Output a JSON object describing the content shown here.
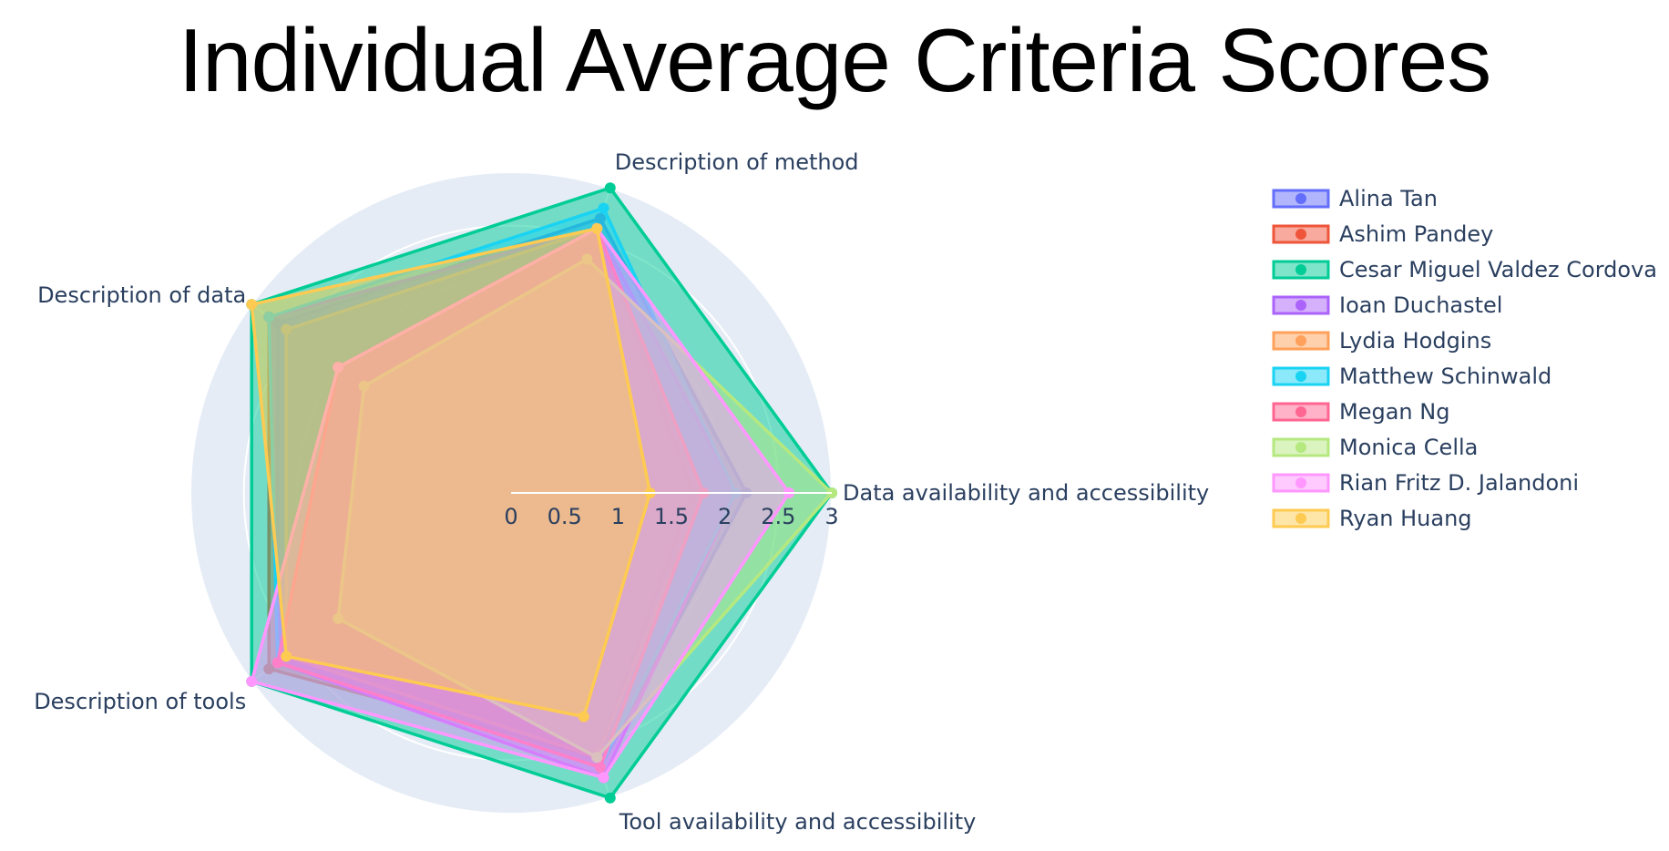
{
  "chart_data": {
    "type": "radar",
    "title": "Individual Average Criteria Scores",
    "axes": [
      "Data availability and accessibility",
      "Description of method",
      "Description of data",
      "Description of tools",
      "Tool availability and accessibility"
    ],
    "radial_range": [
      0,
      3
    ],
    "radial_ticks": [
      "0",
      "0.5",
      "1",
      "1.5",
      "2",
      "2.5",
      "3"
    ],
    "legend_position": "right",
    "series": [
      {
        "name": "Alina Tan",
        "color": "#636efa",
        "values": [
          2.2,
          2.7,
          2.7,
          2.7,
          2.7
        ]
      },
      {
        "name": "Ashim Pandey",
        "color": "#ef553b",
        "values": [
          1.7,
          2.6,
          2.8,
          2.8,
          2.6
        ]
      },
      {
        "name": "Cesar Miguel Valdez Cordova",
        "color": "#00cc96",
        "values": [
          3.0,
          3.0,
          3.0,
          3.0,
          3.0
        ]
      },
      {
        "name": "Ioan Duchastel",
        "color": "#ab63fa",
        "values": [
          2.1,
          2.6,
          2.8,
          2.7,
          2.8
        ]
      },
      {
        "name": "Lydia Hodgins",
        "color": "#ffa15a",
        "values": [
          1.8,
          2.6,
          2.6,
          2.6,
          2.6
        ]
      },
      {
        "name": "Matthew Schinwald",
        "color": "#19d3f3",
        "values": [
          2.1,
          2.8,
          2.8,
          2.7,
          2.7
        ]
      },
      {
        "name": "Megan Ng",
        "color": "#ff6692",
        "values": [
          1.8,
          2.6,
          2.0,
          2.7,
          2.7
        ]
      },
      {
        "name": "Monica Cella",
        "color": "#b6e880",
        "values": [
          3.0,
          2.3,
          1.7,
          2.0,
          2.6
        ]
      },
      {
        "name": "Rian Fritz D. Jalandoni",
        "color": "#ff97ff",
        "values": [
          2.6,
          2.6,
          2.0,
          3.0,
          2.8
        ]
      },
      {
        "name": "Ryan Huang",
        "color": "#fecb52",
        "values": [
          1.3,
          2.6,
          3.0,
          2.6,
          2.2
        ]
      }
    ]
  }
}
